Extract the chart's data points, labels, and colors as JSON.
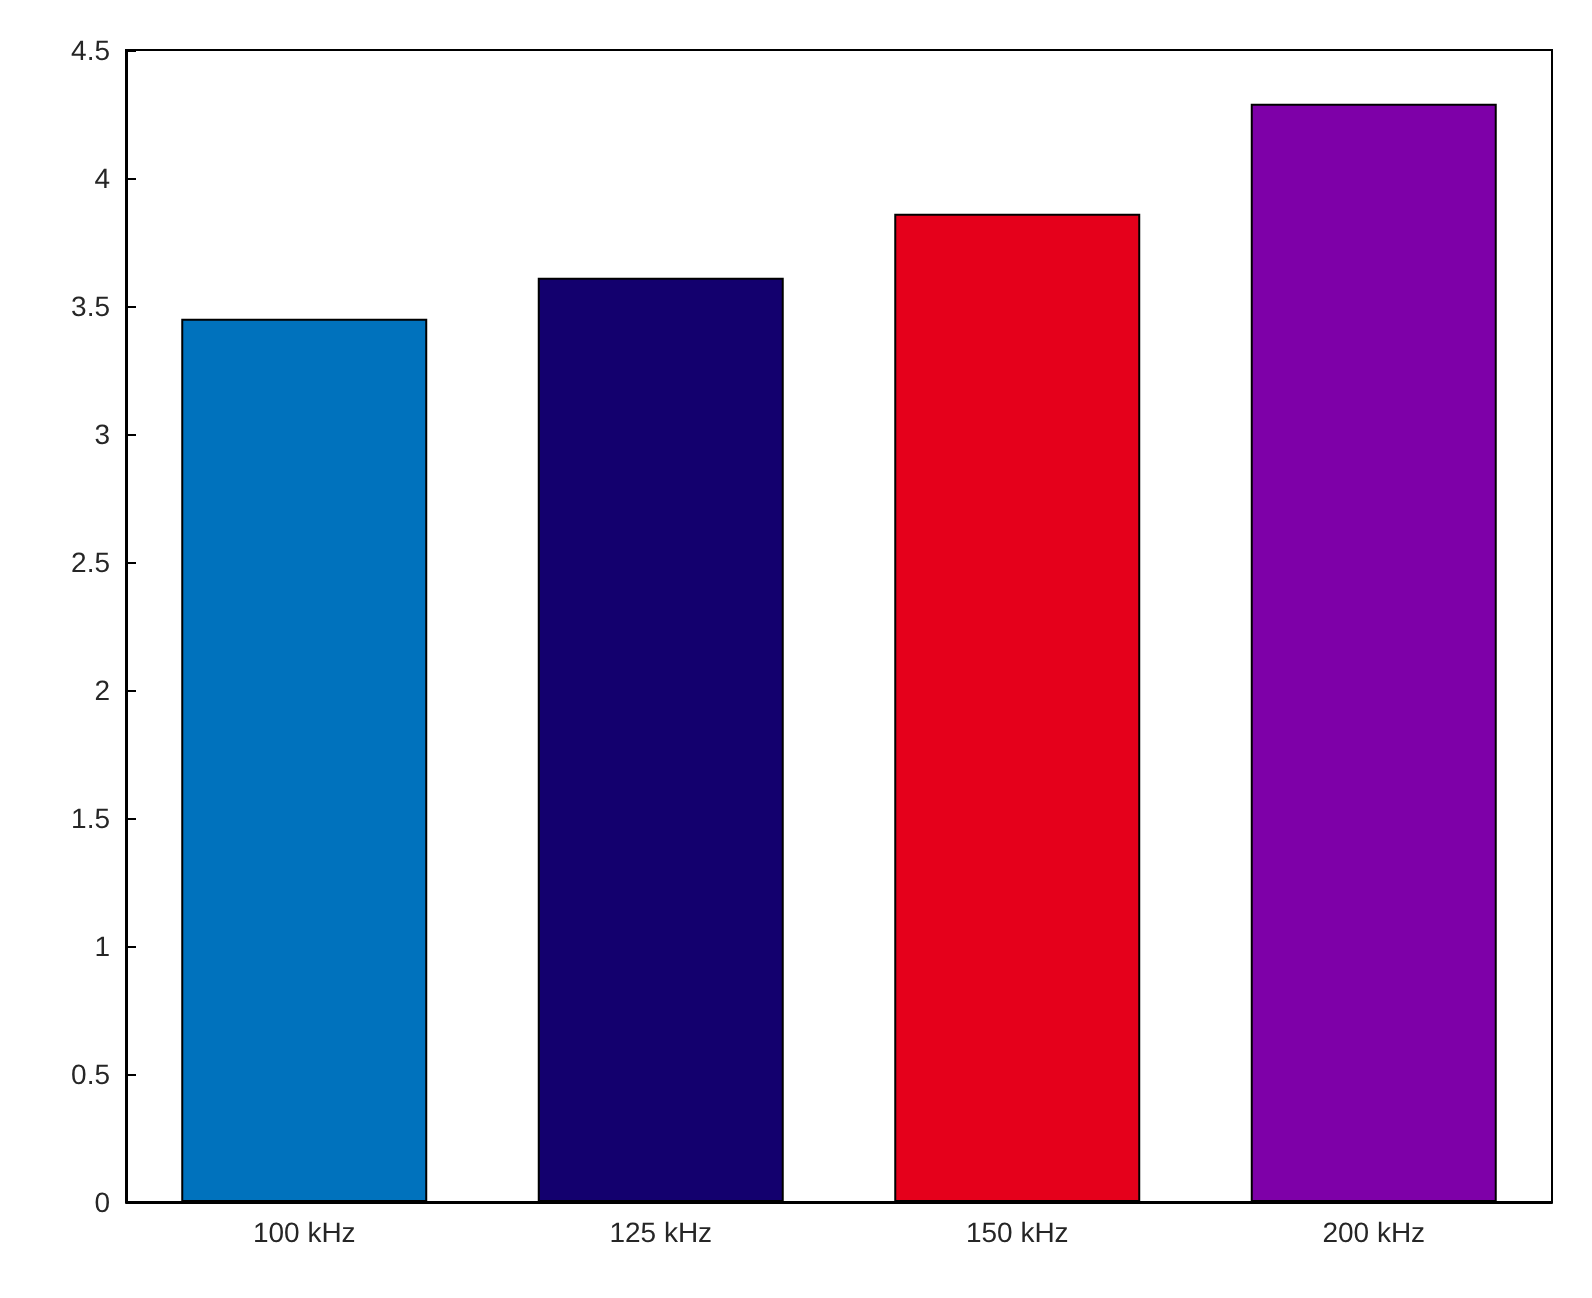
{
  "chart_data": {
    "type": "bar",
    "categories": [
      "100 kHz",
      "125 kHz",
      "150 kHz",
      "200 kHz"
    ],
    "values": [
      3.45,
      3.61,
      3.86,
      4.29
    ],
    "colors": [
      "#0072bd",
      "#13006e",
      "#e5001b",
      "#7e00a8"
    ],
    "ylim": [
      0,
      4.5
    ],
    "yticks": [
      0,
      0.5,
      1,
      1.5,
      2,
      2.5,
      3,
      3.5,
      4,
      4.5
    ],
    "grid": false
  }
}
